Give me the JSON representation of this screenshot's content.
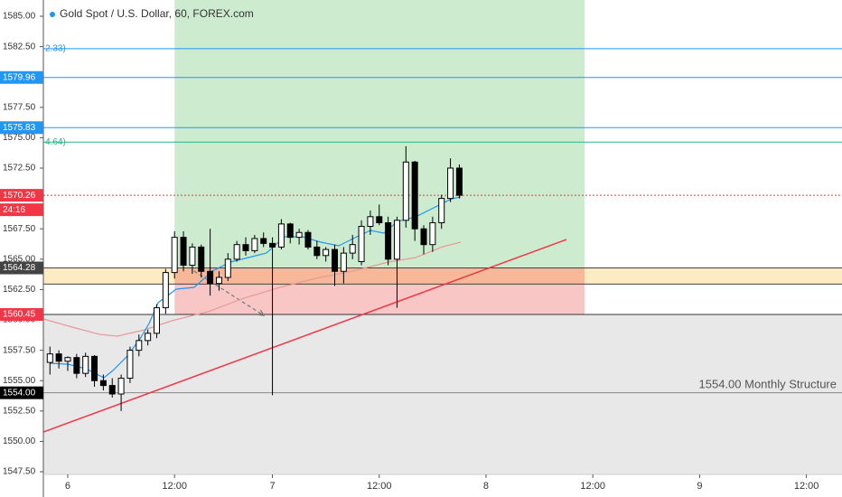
{
  "chart_data": {
    "type": "candlestick",
    "title": "Gold Spot / U.S. Dollar, 60, FOREX.com",
    "x": [
      -2,
      -1,
      0,
      1,
      2,
      3,
      4,
      5,
      6,
      7,
      8,
      9,
      10,
      11,
      12,
      13,
      14,
      15,
      16,
      17,
      18,
      19,
      20,
      21,
      22,
      23,
      24,
      25,
      26,
      27,
      28,
      29,
      30,
      31,
      32,
      33,
      34,
      35,
      36,
      37,
      38,
      39,
      40,
      41,
      42,
      43,
      44
    ],
    "open": [
      1556.5,
      1557.2,
      1556.6,
      1556.9,
      1555.6,
      1557.0,
      1555.0,
      1554.6,
      1553.9,
      1555.2,
      1557.5,
      1558.3,
      1558.9,
      1561.0,
      1563.9,
      1566.8,
      1564.5,
      1566.0,
      1564.0,
      1563.0,
      1563.5,
      1565.0,
      1566.2,
      1565.7,
      1566.7,
      1566.3,
      1566.0,
      1567.9,
      1566.8,
      1567.2,
      1566.0,
      1565.3,
      1565.8,
      1564.0,
      1565.5,
      1564.8,
      1567.7,
      1568.5,
      1568.0,
      1565.0,
      1568.2,
      1573.0,
      1567.5,
      1566.2,
      1568.0,
      1570.0,
      1572.5
    ],
    "high": [
      1557.8,
      1557.5,
      1557.0,
      1557.2,
      1557.3,
      1557.1,
      1555.5,
      1555.2,
      1555.5,
      1557.8,
      1558.8,
      1559.2,
      1561.3,
      1564.2,
      1567.3,
      1567.3,
      1566.3,
      1566.2,
      1567.5,
      1564.0,
      1565.5,
      1566.5,
      1566.8,
      1567.0,
      1567.2,
      1566.8,
      1568.3,
      1568.0,
      1567.5,
      1567.4,
      1566.5,
      1566.0,
      1566.2,
      1566.0,
      1567.0,
      1568.2,
      1569.0,
      1569.5,
      1568.5,
      1568.5,
      1574.3,
      1573.1,
      1567.8,
      1568.5,
      1570.3,
      1573.3,
      1572.8
    ],
    "low": [
      1555.5,
      1556.0,
      1555.8,
      1555.2,
      1555.3,
      1554.5,
      1554.2,
      1553.6,
      1552.5,
      1554.8,
      1557.0,
      1557.9,
      1558.5,
      1560.5,
      1563.4,
      1564.0,
      1563.8,
      1563.5,
      1562.0,
      1562.4,
      1563.2,
      1564.8,
      1565.3,
      1565.5,
      1566.0,
      1553.8,
      1565.8,
      1566.3,
      1566.2,
      1565.8,
      1565.0,
      1564.8,
      1562.8,
      1563.0,
      1565.0,
      1564.5,
      1567.0,
      1567.8,
      1564.5,
      1561.0,
      1567.6,
      1566.5,
      1565.4,
      1565.6,
      1567.5,
      1569.7,
      1570.0
    ],
    "close": [
      1557.2,
      1556.6,
      1556.9,
      1555.6,
      1557.0,
      1555.0,
      1554.6,
      1553.9,
      1555.2,
      1557.5,
      1558.3,
      1558.9,
      1561.0,
      1563.9,
      1566.8,
      1564.5,
      1566.0,
      1564.0,
      1563.0,
      1563.5,
      1565.0,
      1566.2,
      1565.7,
      1566.7,
      1566.3,
      1566.0,
      1567.9,
      1566.8,
      1567.2,
      1566.0,
      1565.3,
      1565.8,
      1564.0,
      1565.5,
      1566.2,
      1567.7,
      1568.5,
      1568.0,
      1565.0,
      1568.2,
      1573.0,
      1567.5,
      1566.2,
      1568.0,
      1570.0,
      1572.5,
      1570.26
    ],
    "xlim": [
      -2.74,
      87
    ],
    "xticks": [
      {
        "value": 0,
        "label": "6"
      },
      {
        "value": 12,
        "label": "12:00"
      },
      {
        "value": 23,
        "label": "7"
      },
      {
        "value": 35,
        "label": "12:00"
      },
      {
        "value": 47,
        "label": "8"
      },
      {
        "value": 59,
        "label": "12:00"
      },
      {
        "value": 71,
        "label": "9"
      },
      {
        "value": 83,
        "label": "12:00"
      }
    ],
    "ylim": [
      1547.28,
      1586.34
    ],
    "yticks": [
      {
        "value": 1547.5,
        "label": "1547.50"
      },
      {
        "value": 1550,
        "label": "1550.00"
      },
      {
        "value": 1552.5,
        "label": "1552.50"
      },
      {
        "value": 1555,
        "label": "1555.00"
      },
      {
        "value": 1557.5,
        "label": "1557.50"
      },
      {
        "value": 1560,
        "label": "1560.00"
      },
      {
        "value": 1562.5,
        "label": "1562.50"
      },
      {
        "value": 1565,
        "label": "1565.00"
      },
      {
        "value": 1567.5,
        "label": "1567.50"
      },
      {
        "value": 1570,
        "label": "1570.00"
      },
      {
        "value": 1572.5,
        "label": "1572.50"
      },
      {
        "value": 1575,
        "label": "1575.00"
      },
      {
        "value": 1577.5,
        "label": "1577.50"
      },
      {
        "value": 1580,
        "label": "1580.00"
      },
      {
        "value": 1582.5,
        "label": "1582.50"
      },
      {
        "value": 1585,
        "label": "1585.00"
      }
    ],
    "up_color": "#ffffff",
    "down_color": "#000000",
    "zones": [
      {
        "x": [
          12,
          58.07
        ],
        "y": [
          1564.3,
          1586.34
        ],
        "color": "#cdeccf"
      },
      {
        "y": [
          1562.95,
          1564.28
        ],
        "color": "#fdebc4"
      },
      {
        "x": [
          12,
          58.07
        ],
        "y": [
          1560.4,
          1564.3
        ],
        "color": "#f9c6c6"
      },
      {
        "x": [
          12,
          58.07
        ],
        "y": [
          1562.95,
          1564.28
        ],
        "color": "#f6b899"
      },
      {
        "y": [
          1547.28,
          1560.45
        ],
        "color": "#e8e8e8"
      }
    ],
    "levels": [
      {
        "value": 1582.33,
        "color": "#2196f3",
        "tag": "2.33)"
      },
      {
        "value": 1579.96,
        "color": "#2196f3",
        "badge": true
      },
      {
        "value": 1575.83,
        "color": "#2196f3",
        "badge": true
      },
      {
        "value": 1574.64,
        "color": "#26b38a",
        "tag": "4.64)"
      },
      {
        "value": 1570.26,
        "color": "#f23645",
        "badge": true,
        "dash": true,
        "countdown": "24:16"
      },
      {
        "value": 1564.28,
        "color": "#444444",
        "badge": true
      },
      {
        "value": 1562.95,
        "color": "#444444"
      },
      {
        "value": 1560.45,
        "color": "#333333",
        "badge": true,
        "badge_color": "#f23645"
      },
      {
        "value": 1554,
        "label": "1554.00",
        "color": "#888888",
        "badge": true,
        "badge_color": "#000000"
      }
    ],
    "annotation": "1554.00 Monthly Structure",
    "trend_line": {
      "x": [
        -2.74,
        56.04
      ],
      "y": [
        1550.77,
        1566.62
      ],
      "color": "#f23645"
    },
    "arrow": {
      "x": [
        14.2,
        22.03
      ],
      "y": [
        1564.02,
        1560.37
      ],
      "color": "#777777"
    }
  }
}
